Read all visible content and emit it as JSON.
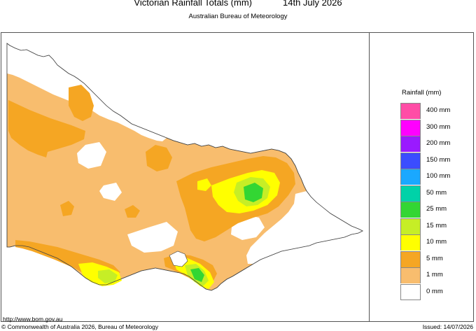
{
  "header": {
    "title": "Victorian Rainfall Totals (mm)",
    "date": "14th July 2026",
    "subtitle": "Australian Bureau of Meteorology"
  },
  "legend": {
    "title": "Rainfall (mm)",
    "items": [
      {
        "label": "400 mm",
        "color": "#ff4da6"
      },
      {
        "label": "300 mm",
        "color": "#ff00ff"
      },
      {
        "label": "200 mm",
        "color": "#9a1aff"
      },
      {
        "label": "150 mm",
        "color": "#3b4dff"
      },
      {
        "label": "100 mm",
        "color": "#1aa8ff"
      },
      {
        "label": "50 mm",
        "color": "#00d2a8"
      },
      {
        "label": "25 mm",
        "color": "#33d633"
      },
      {
        "label": "15 mm",
        "color": "#c6ee26"
      },
      {
        "label": "10 mm",
        "color": "#ffff00"
      },
      {
        "label": "5 mm",
        "color": "#f5a623"
      },
      {
        "label": "1 mm",
        "color": "#f8bd6e"
      },
      {
        "label": "0 mm",
        "color": "#ffffff"
      }
    ]
  },
  "footer": {
    "url": "http://www.bom.gov.au",
    "copyright": "© Commonwealth of Australia 2026, Bureau of Meteorology",
    "issued": "Issued: 14/07/2026"
  },
  "map": {
    "region": "Victoria",
    "color_bands": [
      "#f8bd6e",
      "#f5a623",
      "#ffff00",
      "#c6ee26",
      "#33d633",
      "#00d2a8"
    ]
  }
}
